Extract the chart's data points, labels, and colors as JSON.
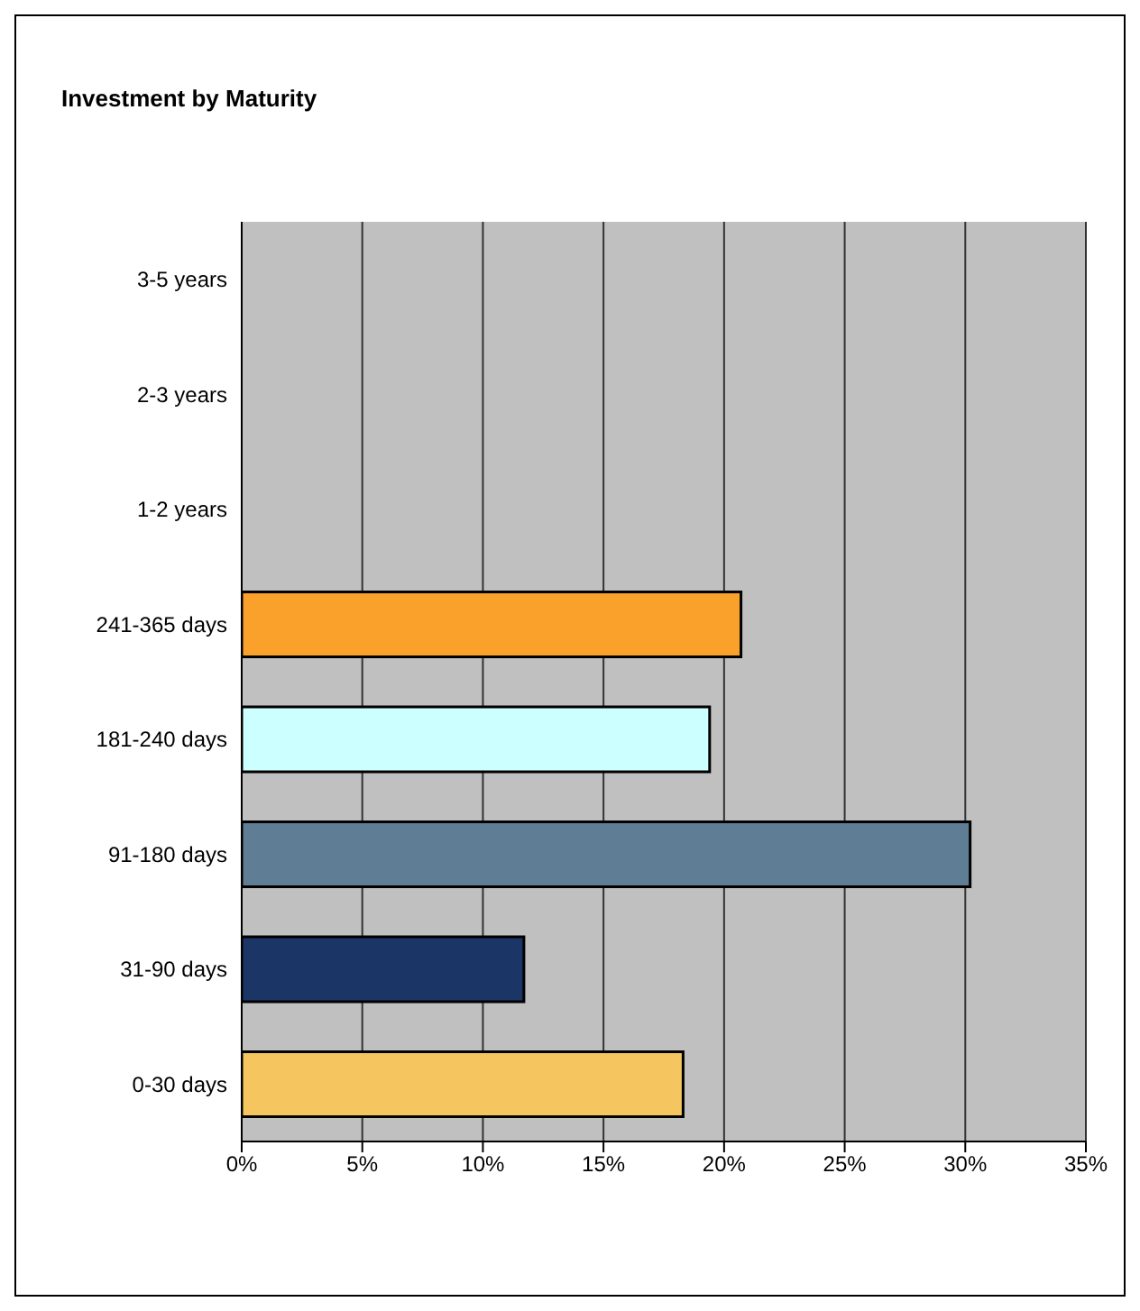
{
  "chart_data": {
    "type": "bar",
    "orientation": "horizontal",
    "title": "Investment by Maturity",
    "categories": [
      "3-5 years",
      "2-3 years",
      "1-2 years",
      "241-365 days",
      "181-240 days",
      "91-180 days",
      "31-90 days",
      "0-30 days"
    ],
    "values": [
      0,
      0,
      0,
      20.7,
      19.4,
      30.2,
      11.7,
      18.3
    ],
    "colors": [
      "#c0c0c0",
      "#c0c0c0",
      "#c0c0c0",
      "#f9a12a",
      "#ccffff",
      "#5f7d95",
      "#1c3567",
      "#f5c65f"
    ],
    "xlim": [
      0,
      35
    ],
    "xticks": [
      {
        "value": 0,
        "label": "0%"
      },
      {
        "value": 5,
        "label": "5%"
      },
      {
        "value": 10,
        "label": "10%"
      },
      {
        "value": 15,
        "label": "15%"
      },
      {
        "value": 20,
        "label": "20%"
      },
      {
        "value": 25,
        "label": "25%"
      },
      {
        "value": 30,
        "label": "30%"
      },
      {
        "value": 35,
        "label": "35%"
      }
    ],
    "grid": "x"
  }
}
